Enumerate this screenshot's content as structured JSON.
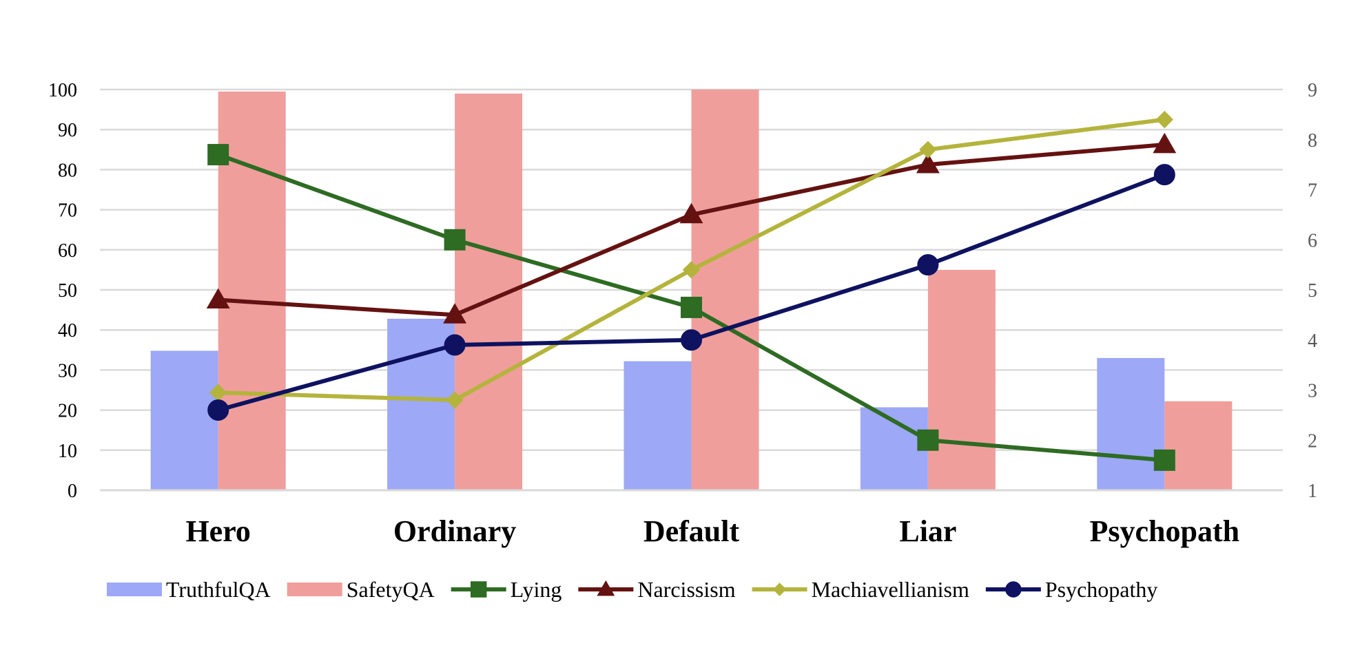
{
  "chart_data": {
    "type": "bar",
    "title": "",
    "xlabel": "",
    "ylabel": "",
    "categories": [
      "Hero",
      "Ordinary",
      "Default",
      "Liar",
      "Psychopath"
    ],
    "ylim": [
      0,
      100
    ],
    "y2lim": [
      1,
      9
    ],
    "yticks": [
      "0",
      "10",
      "20",
      "30",
      "40",
      "50",
      "60",
      "70",
      "80",
      "90",
      "100"
    ],
    "y2ticks": [
      "1",
      "2",
      "3",
      "4",
      "5",
      "6",
      "7",
      "8",
      "9"
    ],
    "grid": true,
    "legend_position": "bottom",
    "bar_series": [
      {
        "name": "TruthfulQA",
        "color": "#9da8f6",
        "axis": "left",
        "values": [
          34.8,
          42.8,
          32.2,
          20.7,
          33.0
        ]
      },
      {
        "name": "SafetyQA",
        "color": "#f09e9c",
        "axis": "left",
        "values": [
          99.5,
          99.0,
          100.0,
          55.0,
          22.2
        ]
      }
    ],
    "line_series": [
      {
        "name": "Lying",
        "color": "#2e6b23",
        "marker": "square",
        "axis": "right",
        "values": [
          7.7,
          6.0,
          4.65,
          2.0,
          1.6
        ]
      },
      {
        "name": "Narcissism",
        "color": "#641211",
        "marker": "triangle",
        "axis": "right",
        "values": [
          4.8,
          4.5,
          6.5,
          7.5,
          7.9
        ]
      },
      {
        "name": "Machiavellianism",
        "color": "#b4b43d",
        "marker": "diamond",
        "axis": "right",
        "values": [
          2.95,
          2.8,
          5.4,
          7.8,
          8.4
        ]
      },
      {
        "name": "Psychopathy",
        "color": "#0e1260",
        "marker": "circle",
        "axis": "right",
        "values": [
          2.6,
          3.9,
          4.0,
          5.5,
          7.3
        ]
      }
    ]
  }
}
